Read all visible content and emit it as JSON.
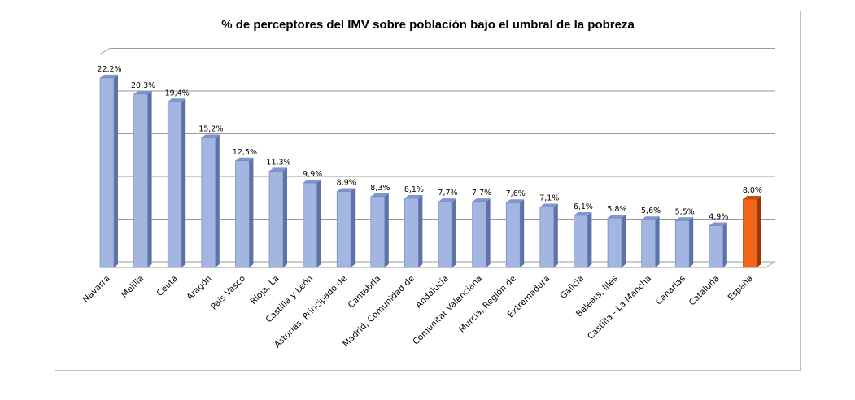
{
  "chart_data": {
    "type": "bar",
    "title": "% de perceptores del IMV sobre población bajo el umbral de la pobreza",
    "xlabel": "",
    "ylabel": "",
    "ylim": [
      0,
      25
    ],
    "grid": true,
    "legend": "none",
    "categories": [
      "Navarra",
      "Melilla",
      "Ceuta",
      "Aragón",
      "País Vasco",
      "Rioja, La",
      "Castilla y León",
      "Asturias, Principado de",
      "Cantabria",
      "Madrid, Comunidad de",
      "Andalucía",
      "Comunitat Valenciana",
      "Murcia, Región de",
      "Extremadura",
      "Galicia",
      "Balears, Illes",
      "Castilla - La Mancha",
      "Canarias",
      "Cataluña",
      "España"
    ],
    "values": [
      22.2,
      20.3,
      19.4,
      15.2,
      12.5,
      11.3,
      9.9,
      8.9,
      8.3,
      8.1,
      7.7,
      7.7,
      7.6,
      7.1,
      6.1,
      5.8,
      5.6,
      5.5,
      4.9,
      8.0
    ],
    "value_labels": [
      "22,2%",
      "20,3%",
      "19,4%",
      "15,2%",
      "12,5%",
      "11,3%",
      "9,9%",
      "8,9%",
      "8,3%",
      "8,1%",
      "7,7%",
      "7,7%",
      "7,6%",
      "7,1%",
      "6,1%",
      "5,8%",
      "5,6%",
      "5,5%",
      "4,9%",
      "8,0%"
    ],
    "colors": {
      "bar_front": "#a3b6e1",
      "bar_side": "#5d73a8",
      "bar_top": "#7f97cf",
      "highlight_front": "#f2661b",
      "highlight_side": "#9b3a09",
      "highlight_top": "#c4500f",
      "highlight_category": "España",
      "grid": "#9a9a9a"
    }
  }
}
